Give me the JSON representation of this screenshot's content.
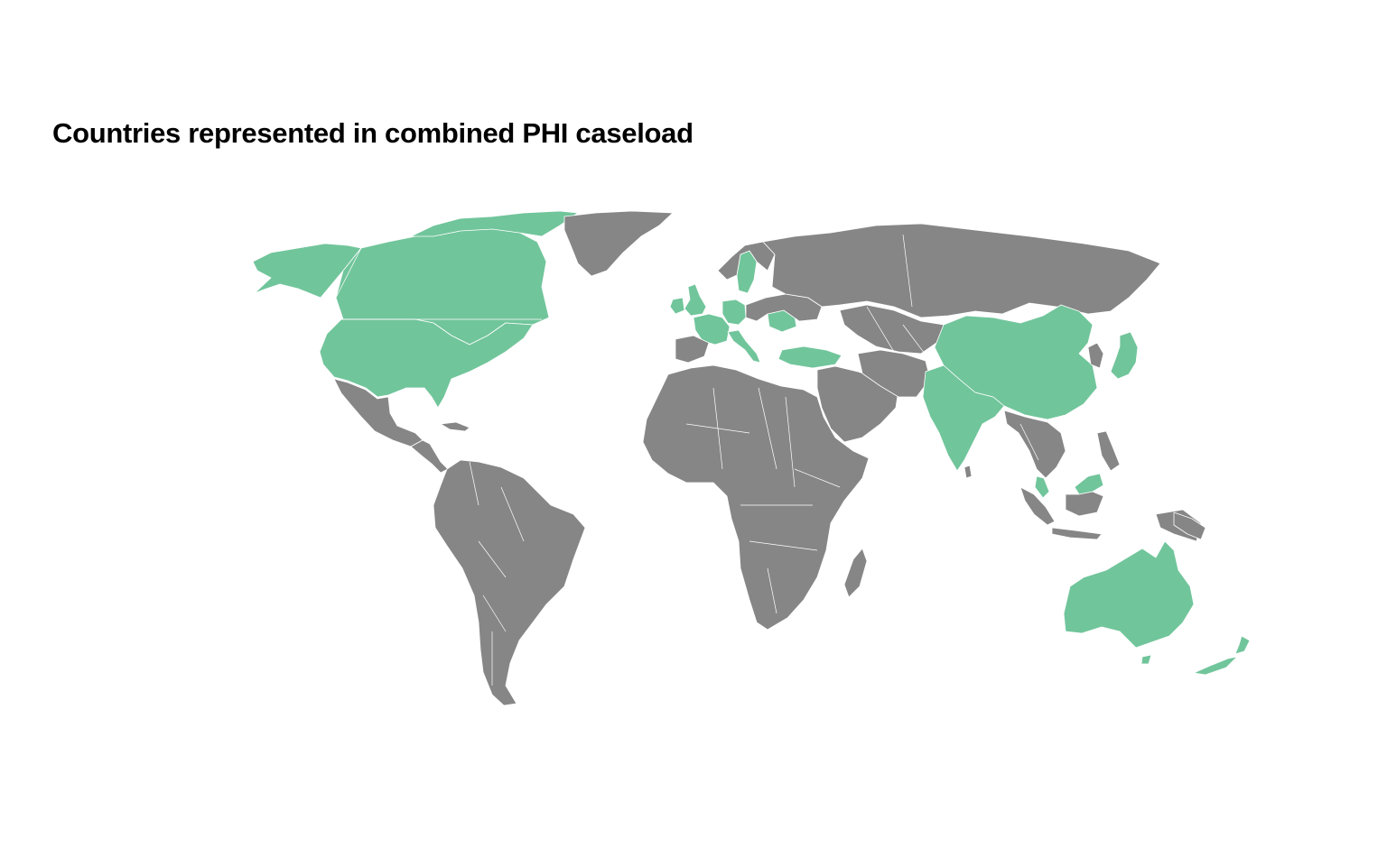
{
  "title": "Countries represented in combined PHI caseload",
  "colors": {
    "highlighted": "#71c59b",
    "other": "#868686",
    "border": "#ffffff",
    "background": "#ffffff"
  },
  "map": {
    "type": "choropleth",
    "projection": "world",
    "highlighted_regions": [
      "Canada",
      "United States",
      "United Kingdom",
      "Ireland",
      "France",
      "Germany",
      "Switzerland",
      "Italy",
      "Sweden",
      "Romania",
      "Turkey",
      "India",
      "China",
      "Japan",
      "Malaysia",
      "Singapore",
      "Australia",
      "New Zealand"
    ]
  }
}
